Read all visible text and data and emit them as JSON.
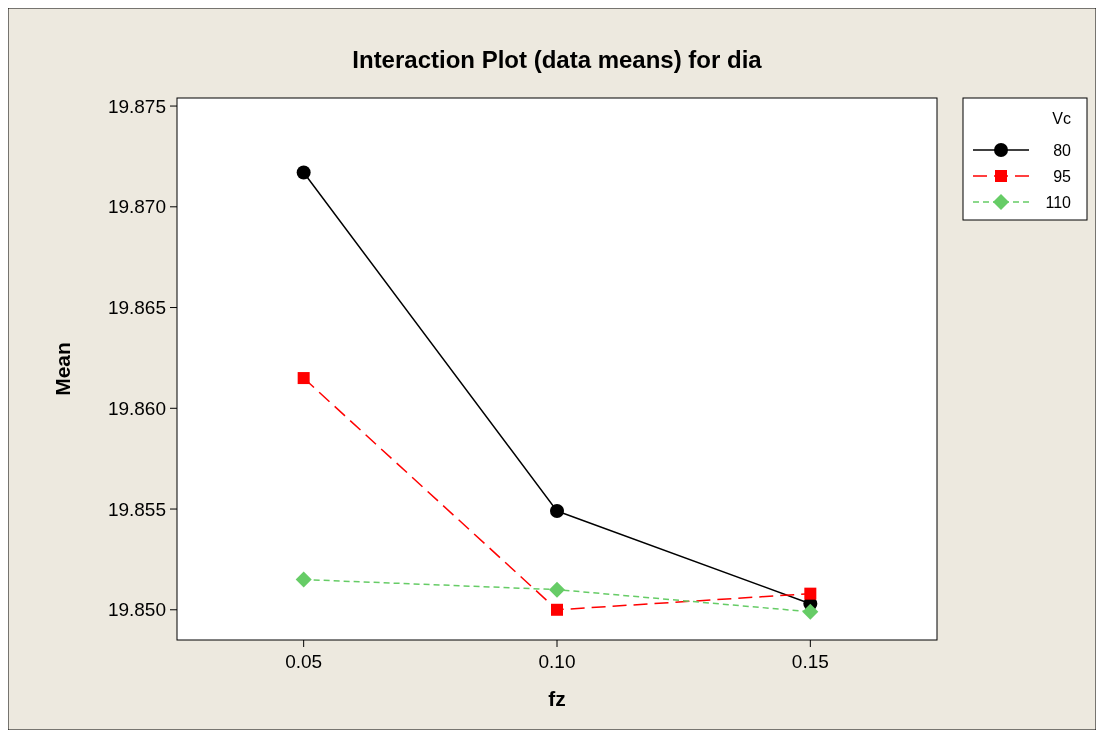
{
  "chart_data": {
    "type": "line",
    "title": "Interaction Plot (data means) for dia",
    "xlabel": "fz",
    "ylabel": "Mean",
    "legend_title": "Vc",
    "legend": "top right",
    "grid": false,
    "x": [
      0.05,
      0.1,
      0.15
    ],
    "xlim": [
      0.025,
      0.175
    ],
    "xticks": [
      {
        "value": 0.05,
        "label": "0.05"
      },
      {
        "value": 0.1,
        "label": "0.10"
      },
      {
        "value": 0.15,
        "label": "0.15"
      }
    ],
    "ylim": [
      19.8485,
      19.8754
    ],
    "yticks": [
      {
        "value": 19.85,
        "label": "19.850"
      },
      {
        "value": 19.855,
        "label": "19.855"
      },
      {
        "value": 19.86,
        "label": "19.860"
      },
      {
        "value": 19.865,
        "label": "19.865"
      },
      {
        "value": 19.87,
        "label": "19.870"
      },
      {
        "value": 19.875,
        "label": "19.875"
      }
    ],
    "series": [
      {
        "name": "80",
        "color": "#000000",
        "marker": "circle",
        "line_style": "solid",
        "values": [
          19.8717,
          19.8549,
          19.8503
        ]
      },
      {
        "name": "95",
        "color": "#ff0000",
        "marker": "square",
        "line_style": "dashed",
        "values": [
          19.8615,
          19.85,
          19.8508
        ]
      },
      {
        "name": "110",
        "color": "#66cc66",
        "marker": "diamond",
        "line_style": "dotted",
        "values": [
          19.8515,
          19.851,
          19.8499
        ]
      }
    ]
  }
}
